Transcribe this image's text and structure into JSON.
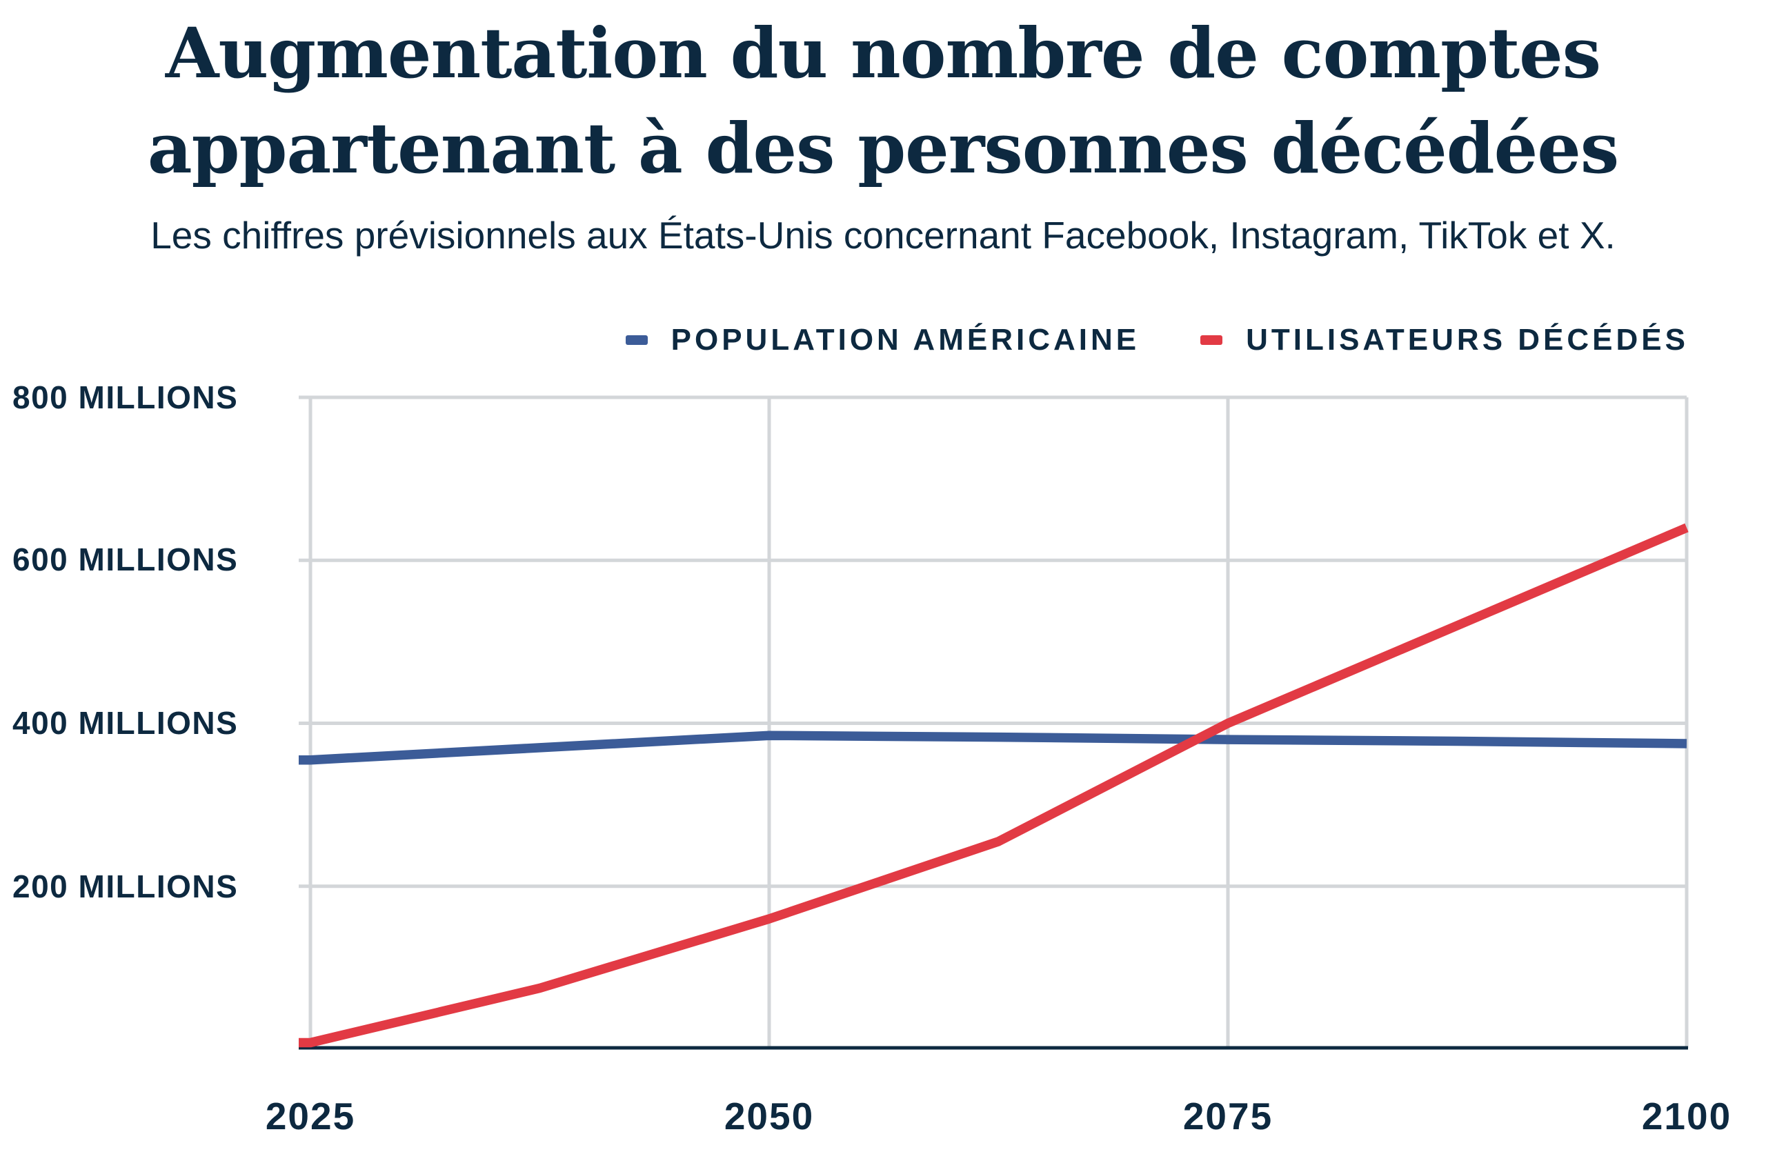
{
  "header": {
    "title_lines": [
      "Augmentation du nombre de comptes",
      "appartenant à des personnes décédées"
    ],
    "subtitle": "Les chiffres prévisionnels aux États-Unis concernant Facebook, Instagram, TikTok et X."
  },
  "legend": {
    "items": [
      {
        "label": "POPULATION AMÉRICAINE",
        "color": "#3c5c98"
      },
      {
        "label": "UTILISATEURS DÉCÉDÉS",
        "color": "#e23a44"
      }
    ]
  },
  "chart_data": {
    "type": "line",
    "title": "Augmentation du nombre de comptes appartenant à des personnes décédées",
    "subtitle": "Les chiffres prévisionnels aux États-Unis concernant Facebook, Instagram, TikTok et X.",
    "xlim": [
      2025,
      2100
    ],
    "ylim": [
      0,
      800
    ],
    "x_ticks": [
      2025,
      2050,
      2075,
      2100
    ],
    "x_tick_labels": [
      "2025",
      "2050",
      "2075",
      "2100"
    ],
    "y_ticks_top_down": [
      800,
      600,
      400,
      200
    ],
    "y_tick_labels_top_down": [
      "800 MILLIONS",
      "600 MILLIONS",
      "400 MILLIONS",
      "200 MILLIONS"
    ],
    "grid": true,
    "legend_position": "top-right",
    "series": [
      {
        "name": "POPULATION AMÉRICAINE",
        "color": "#3c5c98",
        "x": [
          2025,
          2037.5,
          2050,
          2062.5,
          2075,
          2087.5,
          2100
        ],
        "values": [
          355,
          370,
          385,
          383,
          380,
          378,
          375
        ]
      },
      {
        "name": "UTILISATEURS DÉCÉDÉS",
        "color": "#e23a44",
        "x": [
          2025,
          2037.5,
          2050,
          2062.5,
          2075,
          2087.5,
          2100
        ],
        "values": [
          8,
          75,
          160,
          255,
          400,
          520,
          640
        ]
      }
    ]
  }
}
